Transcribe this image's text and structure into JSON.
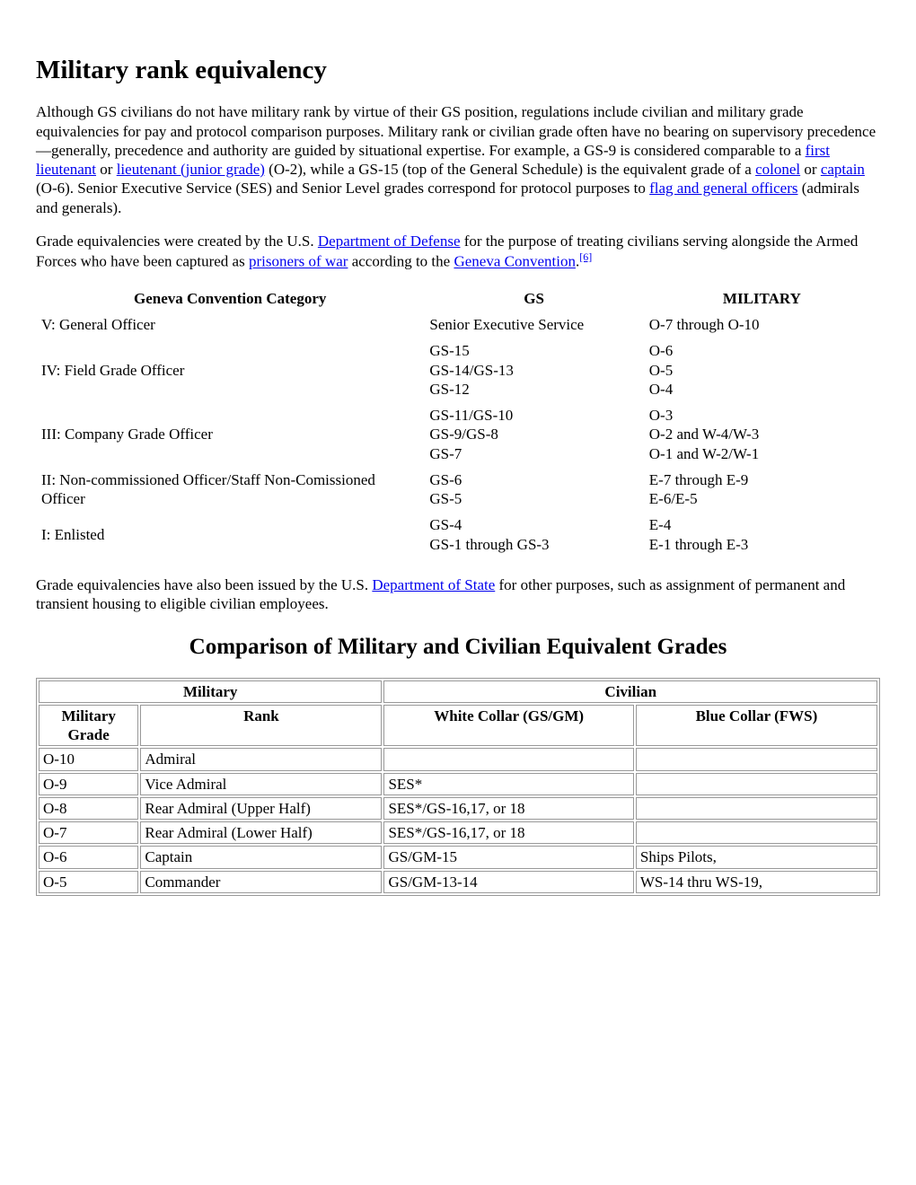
{
  "heading": "Military rank equivalency",
  "para1": {
    "t1": "Although GS civilians do not have military rank by virtue of their GS position, regulations include civilian and military grade equivalencies for pay and protocol comparison purposes. Military rank or civilian grade often have no bearing on supervisory precedence—generally, precedence and authority are guided by situational expertise. For example, a GS-9 is considered comparable to a ",
    "link1": "first lieutenant",
    "t2": " or ",
    "link2": "lieutenant (junior grade)",
    "t3": " (O-2), while a GS-15 (top of the General Schedule) is the equivalent grade of a ",
    "link3": "colonel",
    "t4": " or ",
    "link4": "captain",
    "t5": " (O-6). Senior Executive Service (SES) and Senior Level grades correspond for protocol purposes to ",
    "link5": "flag and general officers",
    "t6": " (admirals and generals)."
  },
  "para2": {
    "t1": "Grade equivalencies were created by the U.S. ",
    "link1": "Department of Defense",
    "t2": " for the purpose of treating civilians serving alongside the Armed Forces who have been captured as ",
    "link2": "prisoners of war",
    "t3": " according to the ",
    "link3": "Geneva Convention",
    "t4": ".",
    "cite": "[6]"
  },
  "genevaTable": {
    "headers": [
      "Geneva Convention Category",
      "GS",
      "MILITARY"
    ],
    "rows": [
      {
        "cat": "V: General Officer",
        "gs": [
          "Senior Executive Service"
        ],
        "mil": [
          "O-7 through O-10"
        ]
      },
      {
        "cat": "IV: Field Grade Officer",
        "gs": [
          "GS-15",
          "GS-14/GS-13",
          "GS-12"
        ],
        "mil": [
          "O-6",
          "O-5",
          "O-4"
        ]
      },
      {
        "cat": "III: Company Grade Officer",
        "gs": [
          "GS-11/GS-10",
          "GS-9/GS-8",
          "GS-7"
        ],
        "mil": [
          "O-3",
          "O-2 and W-4/W-3",
          "O-1 and W-2/W-1"
        ]
      },
      {
        "cat": "II: Non-commissioned Officer/Staff Non-Comissioned Officer",
        "gs": [
          "GS-6",
          "GS-5"
        ],
        "mil": [
          "E-7 through E-9",
          "E-6/E-5"
        ]
      },
      {
        "cat": "I: Enlisted",
        "gs": [
          "GS-4",
          "GS-1 through GS-3"
        ],
        "mil": [
          "E-4",
          "E-1 through E-3"
        ]
      }
    ]
  },
  "para3": {
    "t1": "Grade equivalencies have also been issued by the U.S. ",
    "link1": "Department of State",
    "t2": " for other purposes, such as assignment of permanent and transient housing to eligible civilian employees."
  },
  "comparisonHeading": "Comparison of Military and Civilian Equivalent Grades",
  "cmpTable": {
    "topHeaders": [
      "Military",
      "Civilian"
    ],
    "subHeaders": [
      "Military Grade",
      "Rank",
      "White Collar (GS/GM)",
      "Blue Collar (FWS)"
    ],
    "rows": [
      [
        "O-10",
        "Admiral",
        "",
        ""
      ],
      [
        "O-9",
        "Vice Admiral",
        "SES*",
        ""
      ],
      [
        "O-8",
        "Rear Admiral (Upper Half)",
        "SES*/GS-16,17, or 18",
        ""
      ],
      [
        "O-7",
        "Rear Admiral (Lower Half)",
        "SES*/GS-16,17, or 18",
        ""
      ],
      [
        "O-6",
        "Captain",
        "GS/GM-15",
        "Ships Pilots,"
      ],
      [
        "O-5",
        "Commander",
        "GS/GM-13-14",
        "WS-14 thru WS-19,"
      ]
    ]
  },
  "colors": {
    "link": "#0000ee",
    "text": "#000000",
    "bg": "#ffffff",
    "tableBorder": "#999999"
  },
  "fonts": {
    "body_family": "Times New Roman",
    "body_size_pt": 12,
    "h1_size_pt": 22,
    "h2_size_pt": 19
  }
}
